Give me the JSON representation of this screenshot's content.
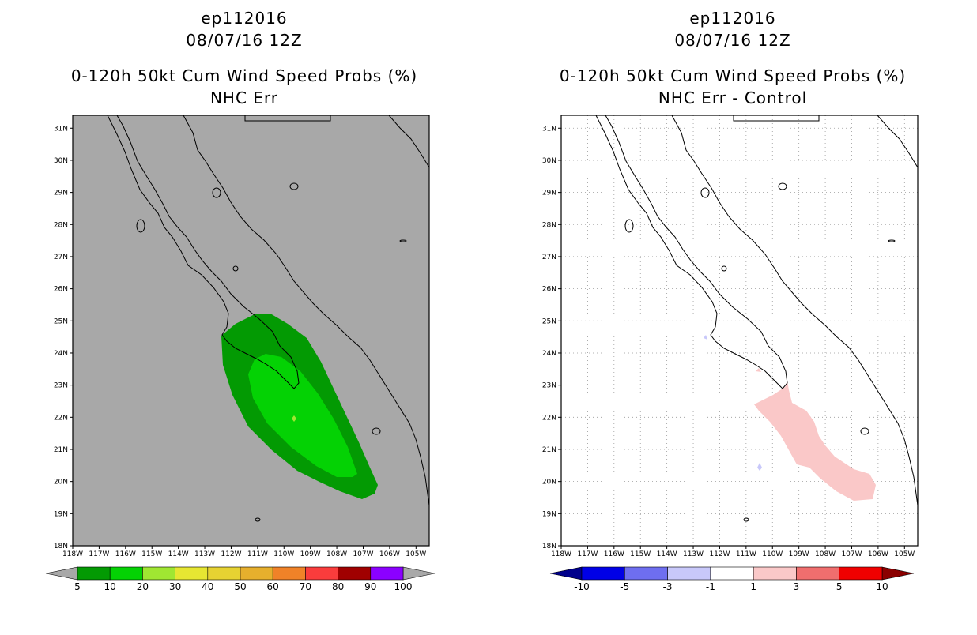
{
  "chart_data": [
    {
      "type": "heatmap",
      "title_lines": [
        "ep112016",
        "08/07/16 12Z",
        "0-120h 50kt Cum Wind Speed Probs (%)",
        "NHC Err"
      ],
      "lon_range": [
        -118,
        -104.5
      ],
      "lat_range": [
        18,
        31.4
      ],
      "x_ticks": [
        "118W",
        "117W",
        "116W",
        "115W",
        "114W",
        "113W",
        "112W",
        "111W",
        "110W",
        "109W",
        "108W",
        "107W",
        "106W",
        "105W"
      ],
      "y_ticks": [
        "18N",
        "19N",
        "20N",
        "21N",
        "22N",
        "23N",
        "24N",
        "25N",
        "26N",
        "27N",
        "28N",
        "29N",
        "30N",
        "31N"
      ],
      "background": "#a8a8a8",
      "grid": false,
      "colorbar": {
        "labels": [
          "5",
          "10",
          "20",
          "30",
          "40",
          "50",
          "60",
          "70",
          "80",
          "90",
          "100"
        ],
        "colors": [
          "#039a03",
          "#04d204",
          "#a0e632",
          "#e6e632",
          "#e6d232",
          "#e6af2d",
          "#f08228",
          "#fa3c3c",
          "#a00000",
          "#8b00ff"
        ],
        "under_color": "#a8a8a8",
        "over_color": "#a8a8a8"
      },
      "regions": [
        {
          "label": "5-10%",
          "color": "#039a03"
        },
        {
          "label": "10-20%",
          "color": "#04d204"
        },
        {
          "label": "20-30%",
          "color": "#a0e632"
        }
      ]
    },
    {
      "type": "heatmap",
      "title_lines": [
        "ep112016",
        "08/07/16 12Z",
        "0-120h 50kt Cum Wind Speed Probs (%)",
        "NHC Err - Control"
      ],
      "lon_range": [
        -118,
        -104.5
      ],
      "lat_range": [
        18,
        31.4
      ],
      "x_ticks": [
        "118W",
        "117W",
        "116W",
        "115W",
        "114W",
        "113W",
        "112W",
        "111W",
        "110W",
        "109W",
        "108W",
        "107W",
        "106W",
        "105W"
      ],
      "y_ticks": [
        "18N",
        "19N",
        "20N",
        "21N",
        "22N",
        "23N",
        "24N",
        "25N",
        "26N",
        "27N",
        "28N",
        "29N",
        "30N",
        "31N"
      ],
      "background": "#ffffff",
      "grid": true,
      "colorbar": {
        "labels": [
          "-10",
          "-5",
          "-3",
          "-1",
          "1",
          "3",
          "5",
          "10"
        ],
        "colors": [
          "#0000e6",
          "#6e6ef0",
          "#c8c8fa",
          "#ffffff",
          "#fac8c8",
          "#f06e6e",
          "#f00000"
        ],
        "under_color": "#00008b",
        "over_color": "#8b0000"
      },
      "regions": [
        {
          "label": "1 to 3",
          "color": "#fac8c8"
        },
        {
          "label": "-1 to -3",
          "color": "#c8c8fa"
        }
      ]
    }
  ]
}
